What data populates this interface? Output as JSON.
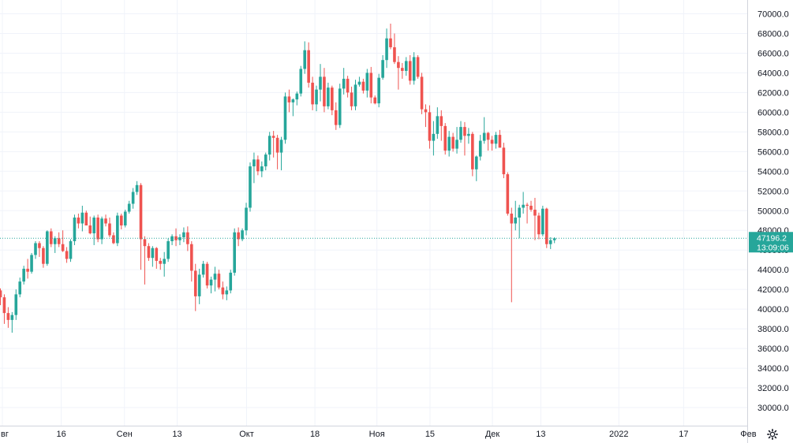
{
  "chart_data": {
    "type": "candlestick",
    "y_axis": {
      "min": 28000,
      "max": 71000,
      "ticks": [
        "30000.0",
        "32000.0",
        "34000.0",
        "36000.0",
        "38000.0",
        "40000.0",
        "42000.0",
        "44000.0",
        "46000.0",
        "48000.0",
        "50000.0",
        "52000.0",
        "54000.0",
        "56000.0",
        "58000.0",
        "60000.0",
        "62000.0",
        "64000.0",
        "66000.0",
        "68000.0",
        "70000.0"
      ]
    },
    "x_axis": {
      "labels": [
        "вг",
        "16",
        "Сен",
        "13",
        "Окт",
        "18",
        "Ноя",
        "15",
        "Дек",
        "13",
        "2022",
        "17",
        "Фев"
      ],
      "label_bar_index": [
        0.5,
        15.6,
        31.8,
        45.3,
        63.1,
        80.6,
        96.5,
        110.1,
        126.1,
        138.5,
        158.5,
        175.1,
        191.7
      ]
    },
    "last_price": {
      "price": 47196.2,
      "label": "47196.2",
      "countdown": "13:09:06"
    },
    "candles": [
      [
        41900,
        42100,
        40400,
        41200
      ],
      [
        41200,
        41500,
        38500,
        39600
      ],
      [
        39600,
        40200,
        38100,
        38900
      ],
      [
        38900,
        39700,
        37600,
        39400
      ],
      [
        39400,
        42000,
        38900,
        41500
      ],
      [
        41500,
        43200,
        41200,
        42800
      ],
      [
        42800,
        44400,
        42500,
        44100
      ],
      [
        44100,
        45100,
        43100,
        43800
      ],
      [
        43800,
        45700,
        43600,
        45500
      ],
      [
        45500,
        46900,
        45100,
        46700
      ],
      [
        46700,
        46900,
        45300,
        46200
      ],
      [
        46200,
        46400,
        44200,
        44600
      ],
      [
        44600,
        48000,
        44400,
        47900
      ],
      [
        47900,
        48200,
        46300,
        46600
      ],
      [
        46600,
        47400,
        45700,
        47200
      ],
      [
        47200,
        47800,
        46300,
        46600
      ],
      [
        46600,
        48000,
        45800,
        45900
      ],
      [
        45900,
        46300,
        44700,
        45100
      ],
      [
        45100,
        47100,
        44800,
        46900
      ],
      [
        46900,
        49600,
        46500,
        49300
      ],
      [
        49300,
        49700,
        48200,
        48700
      ],
      [
        48700,
        50500,
        47900,
        49800
      ],
      [
        49800,
        50000,
        48500,
        48500
      ],
      [
        48500,
        49400,
        47600,
        47700
      ],
      [
        47700,
        49500,
        46500,
        49300
      ],
      [
        49300,
        49600,
        46800,
        47100
      ],
      [
        47100,
        49400,
        46600,
        49200
      ],
      [
        49200,
        49600,
        48400,
        48700
      ],
      [
        48700,
        49300,
        47300,
        47500
      ],
      [
        47500,
        47800,
        46600,
        46700
      ],
      [
        46700,
        49800,
        46400,
        49500
      ],
      [
        49500,
        49700,
        48100,
        48500
      ],
      [
        48500,
        50100,
        48300,
        49900
      ],
      [
        49900,
        51000,
        49700,
        50700
      ],
      [
        50700,
        52300,
        50200,
        51900
      ],
      [
        51900,
        53000,
        51600,
        52600
      ],
      [
        52600,
        52800,
        44000,
        47100
      ],
      [
        47100,
        47400,
        42500,
        46400
      ],
      [
        46400,
        46700,
        44900,
        45200
      ],
      [
        45200,
        46400,
        44300,
        46200
      ],
      [
        46200,
        46300,
        44100,
        44900
      ],
      [
        44900,
        45200,
        44000,
        44600
      ],
      [
        44600,
        45800,
        43300,
        45100
      ],
      [
        45100,
        47200,
        44800,
        46900
      ],
      [
        46900,
        47600,
        46500,
        47400
      ],
      [
        47400,
        48200,
        46400,
        47000
      ],
      [
        47000,
        47600,
        46500,
        47300
      ],
      [
        47300,
        48300,
        46800,
        47800
      ],
      [
        47800,
        48400,
        45900,
        46600
      ],
      [
        46600,
        46900,
        42800,
        43900
      ],
      [
        43900,
        44600,
        39800,
        41300
      ],
      [
        41300,
        44100,
        40500,
        43500
      ],
      [
        43500,
        44900,
        43200,
        44600
      ],
      [
        44600,
        44800,
        42100,
        42400
      ],
      [
        42400,
        43300,
        41600,
        43000
      ],
      [
        43000,
        44300,
        41800,
        43600
      ],
      [
        43600,
        44000,
        42000,
        42200
      ],
      [
        42200,
        42800,
        41000,
        41500
      ],
      [
        41500,
        42300,
        40900,
        41900
      ],
      [
        41900,
        44000,
        41600,
        43700
      ],
      [
        43700,
        48200,
        43400,
        47800
      ],
      [
        47800,
        48300,
        46400,
        47100
      ],
      [
        47100,
        48200,
        46900,
        48000
      ],
      [
        48000,
        50800,
        47500,
        50300
      ],
      [
        50300,
        54900,
        49900,
        54500
      ],
      [
        54500,
        55900,
        52800,
        55200
      ],
      [
        55200,
        55600,
        53600,
        54000
      ],
      [
        54000,
        55000,
        53400,
        54500
      ],
      [
        54500,
        55900,
        54100,
        55700
      ],
      [
        55700,
        58000,
        55100,
        57600
      ],
      [
        57600,
        58100,
        55400,
        57400
      ],
      [
        57400,
        57700,
        54200,
        55900
      ],
      [
        55900,
        57500,
        54100,
        57200
      ],
      [
        57200,
        62000,
        56800,
        61600
      ],
      [
        61600,
        62300,
        60000,
        61000
      ],
      [
        61000,
        61400,
        59600,
        61300
      ],
      [
        61300,
        62100,
        60700,
        61900
      ],
      [
        61900,
        64700,
        61600,
        64400
      ],
      [
        64400,
        67200,
        63900,
        66300
      ],
      [
        66300,
        67100,
        62500,
        63000
      ],
      [
        63000,
        63600,
        60200,
        60800
      ],
      [
        60800,
        62700,
        60100,
        62300
      ],
      [
        62300,
        64900,
        61100,
        63600
      ],
      [
        63600,
        64500,
        60000,
        60600
      ],
      [
        60600,
        63000,
        60300,
        62500
      ],
      [
        62500,
        62700,
        59700,
        60200
      ],
      [
        60200,
        61000,
        58200,
        58700
      ],
      [
        58700,
        62900,
        58400,
        62400
      ],
      [
        62400,
        64500,
        61800,
        63400
      ],
      [
        63400,
        63700,
        61500,
        62000
      ],
      [
        62000,
        62600,
        60200,
        60600
      ],
      [
        60600,
        63300,
        60200,
        62800
      ],
      [
        62800,
        63600,
        62600,
        63100
      ],
      [
        63100,
        63400,
        61900,
        62200
      ],
      [
        62200,
        64400,
        61500,
        64000
      ],
      [
        64000,
        64600,
        60900,
        61500
      ],
      [
        61500,
        61700,
        60800,
        60900
      ],
      [
        60900,
        63900,
        60500,
        63500
      ],
      [
        63500,
        65800,
        63300,
        65300
      ],
      [
        65300,
        68500,
        64500,
        67500
      ],
      [
        67500,
        69000,
        66400,
        66600
      ],
      [
        66600,
        68000,
        64900,
        65100
      ],
      [
        65100,
        65700,
        62300,
        64500
      ],
      [
        64500,
        65000,
        63400,
        64200
      ],
      [
        64200,
        65600,
        63700,
        65200
      ],
      [
        65200,
        65800,
        62800,
        63200
      ],
      [
        63200,
        66100,
        62800,
        65600
      ],
      [
        65600,
        65800,
        63400,
        63600
      ],
      [
        63600,
        64000,
        59800,
        60300
      ],
      [
        60300,
        60800,
        58500,
        60000
      ],
      [
        60000,
        60700,
        56300,
        57100
      ],
      [
        57100,
        59100,
        55600,
        57800
      ],
      [
        57800,
        60500,
        57300,
        59600
      ],
      [
        59600,
        60200,
        57100,
        58600
      ],
      [
        58600,
        58900,
        55700,
        56100
      ],
      [
        56100,
        58100,
        55500,
        57500
      ],
      [
        57500,
        57900,
        56000,
        56300
      ],
      [
        56300,
        58500,
        55800,
        57200
      ],
      [
        57200,
        59100,
        56900,
        58500
      ],
      [
        58500,
        59000,
        55600,
        57600
      ],
      [
        57600,
        58400,
        56800,
        57800
      ],
      [
        57800,
        58000,
        53500,
        54200
      ],
      [
        54200,
        55600,
        53000,
        55500
      ],
      [
        55500,
        57700,
        55100,
        57100
      ],
      [
        57100,
        59500,
        56800,
        57900
      ],
      [
        57900,
        58000,
        56100,
        57200
      ],
      [
        57200,
        57600,
        56100,
        56800
      ],
      [
        56800,
        58000,
        56300,
        57700
      ],
      [
        57700,
        58200,
        56400,
        56400
      ],
      [
        56400,
        56900,
        53300,
        53700
      ],
      [
        53700,
        53900,
        49500,
        49700
      ],
      [
        49700,
        50300,
        40700,
        48700
      ],
      [
        48700,
        51000,
        48000,
        49300
      ],
      [
        49300,
        50600,
        47200,
        50300
      ],
      [
        50300,
        51900,
        49700,
        50600
      ],
      [
        50600,
        50800,
        48700,
        50500
      ],
      [
        50500,
        51000,
        49900,
        50100
      ],
      [
        50100,
        51300,
        47000,
        49500
      ],
      [
        49500,
        49800,
        47100,
        47600
      ],
      [
        47600,
        50500,
        47400,
        50200
      ],
      [
        50200,
        50300,
        46200,
        46600
      ],
      [
        46600,
        47300,
        46100,
        47000
      ],
      [
        47000,
        47300,
        46700,
        47196
      ]
    ]
  }
}
